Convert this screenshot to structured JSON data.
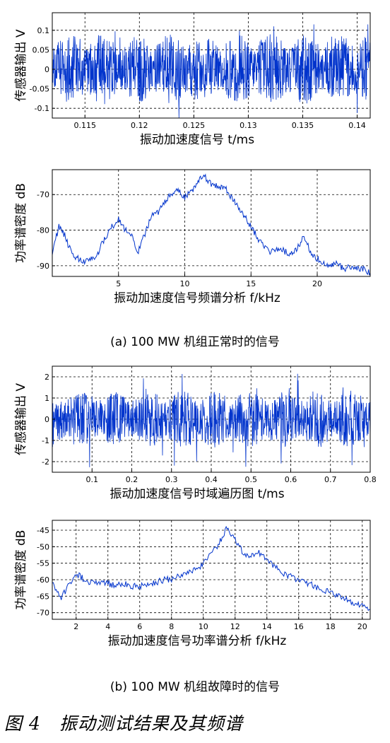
{
  "chart_data": [
    {
      "id": "p1",
      "type": "line",
      "xlabel": "振动加速度信号 t/ms",
      "ylabel": "传感器输出 V",
      "xlim": [
        0.112,
        0.1412
      ],
      "ylim": [
        -0.125,
        0.145
      ],
      "xticks": [
        0.115,
        0.12,
        0.125,
        0.13,
        0.135,
        0.14
      ],
      "xtick_labels": [
        "0.115",
        "0.12",
        "0.125",
        "0.13",
        "0.135",
        "0.14"
      ],
      "yticks": [
        0.1,
        0.05,
        0,
        -0.05,
        -0.1
      ],
      "ytick_labels": [
        "0.1",
        "0.05",
        "0",
        "-0.05",
        "-0.1"
      ],
      "grid": true,
      "color": "#0033cc",
      "series": [
        {
          "name": "",
          "signal": "noise",
          "amplitude": 0.03,
          "peak": 0.13
        }
      ]
    },
    {
      "id": "p2",
      "type": "line",
      "xlabel": "振动加速度信号频谱分析 f/kHz",
      "ylabel": "功率谱密度 dB",
      "xlim": [
        0,
        24
      ],
      "ylim": [
        -93,
        -63
      ],
      "xticks": [
        5,
        10,
        15,
        20
      ],
      "xtick_labels": [
        "5",
        "10",
        "15",
        "20"
      ],
      "yticks": [
        -70,
        -80,
        -90
      ],
      "ytick_labels": [
        "-70",
        "-80",
        "-90"
      ],
      "grid": true,
      "color": "#0033cc",
      "series": [
        {
          "name": "",
          "x": [
            0,
            0.5,
            1,
            1.5,
            2,
            2.5,
            3,
            3.5,
            4,
            4.5,
            5,
            5.5,
            6,
            6.5,
            7,
            7.5,
            8,
            8.5,
            9,
            9.5,
            10,
            10.5,
            11,
            11.5,
            12,
            12.5,
            13,
            13.5,
            14,
            14.5,
            15,
            15.5,
            16,
            16.5,
            17,
            17.5,
            18,
            18.5,
            19,
            19.5,
            20,
            20.5,
            21,
            21.5,
            22,
            22.5,
            23,
            23.5,
            24
          ],
          "y": [
            -86,
            -79,
            -82,
            -87,
            -88,
            -89,
            -88,
            -86,
            -82,
            -79,
            -77,
            -80,
            -82,
            -86,
            -81,
            -76,
            -75,
            -72,
            -70,
            -69,
            -71,
            -69,
            -66,
            -65,
            -67,
            -68,
            -68,
            -71,
            -73,
            -76,
            -79,
            -82,
            -85,
            -86,
            -85,
            -86,
            -87,
            -85,
            -82,
            -86,
            -88,
            -89,
            -90,
            -89,
            -91,
            -90,
            -91,
            -91,
            -92
          ]
        }
      ]
    },
    {
      "id": "p3",
      "type": "line",
      "xlabel": "振动加速度信号时域遍历图 t/ms",
      "ylabel": "传感器输出 V",
      "xlim": [
        0,
        0.8
      ],
      "ylim": [
        -2.5,
        2.5
      ],
      "xticks": [
        0.1,
        0.2,
        0.3,
        0.4,
        0.5,
        0.6,
        0.7,
        0.8
      ],
      "xtick_labels": [
        "0.1",
        "0.2",
        "0.3",
        "0.4",
        "0.5",
        "0.6",
        "0.7",
        "0.8"
      ],
      "yticks": [
        2,
        1,
        0,
        -1,
        -2
      ],
      "ytick_labels": [
        "2",
        "1",
        "0",
        "-1",
        "-2"
      ],
      "grid": true,
      "color": "#0033cc",
      "series": [
        {
          "name": "",
          "signal": "noise",
          "amplitude": 0.45,
          "peak": 2.4
        }
      ]
    },
    {
      "id": "p4",
      "type": "line",
      "xlabel": "振动加速度信号功率谱分析 f/kHz",
      "ylabel": "功率谱密度 dB",
      "xlim": [
        0.5,
        20.5
      ],
      "ylim": [
        -72,
        -42
      ],
      "xticks": [
        2,
        4,
        6,
        8,
        10,
        12,
        14,
        16,
        18,
        20
      ],
      "xtick_labels": [
        "2",
        "4",
        "6",
        "8",
        "10",
        "12",
        "14",
        "16",
        "18",
        "20"
      ],
      "yticks": [
        -45,
        -50,
        -55,
        -60,
        -65,
        -70
      ],
      "ytick_labels": [
        "-45",
        "-50",
        "-55",
        "-60",
        "-65",
        "-70"
      ],
      "grid": true,
      "color": "#0033cc",
      "series": [
        {
          "name": "",
          "x": [
            0.5,
            1,
            1.5,
            2,
            2.5,
            3,
            3.5,
            4,
            4.5,
            5,
            5.5,
            6,
            6.5,
            7,
            7.5,
            8,
            8.5,
            9,
            9.5,
            10,
            10.5,
            11,
            11.5,
            12,
            12.5,
            13,
            13.5,
            14,
            14.5,
            15,
            15.5,
            16,
            16.5,
            17,
            17.5,
            18,
            18.5,
            19,
            19.5,
            20,
            20.5
          ],
          "y": [
            -60,
            -66,
            -62,
            -58,
            -60,
            -61,
            -61,
            -61,
            -62,
            -61,
            -62,
            -62,
            -61,
            -61,
            -60,
            -60,
            -59,
            -58,
            -57,
            -55,
            -52,
            -49,
            -44,
            -48,
            -52,
            -53,
            -52,
            -54,
            -56,
            -58,
            -59,
            -60,
            -61,
            -62,
            -63,
            -64,
            -65,
            -66,
            -67,
            -68,
            -69
          ]
        }
      ]
    }
  ],
  "captions": {
    "a": "(a) 100 MW 机组正常时的信号",
    "b": "(b) 100 MW 机组故障时的信号"
  },
  "figure": {
    "number": "图 4",
    "title": "振动测试结果及其频谱"
  }
}
